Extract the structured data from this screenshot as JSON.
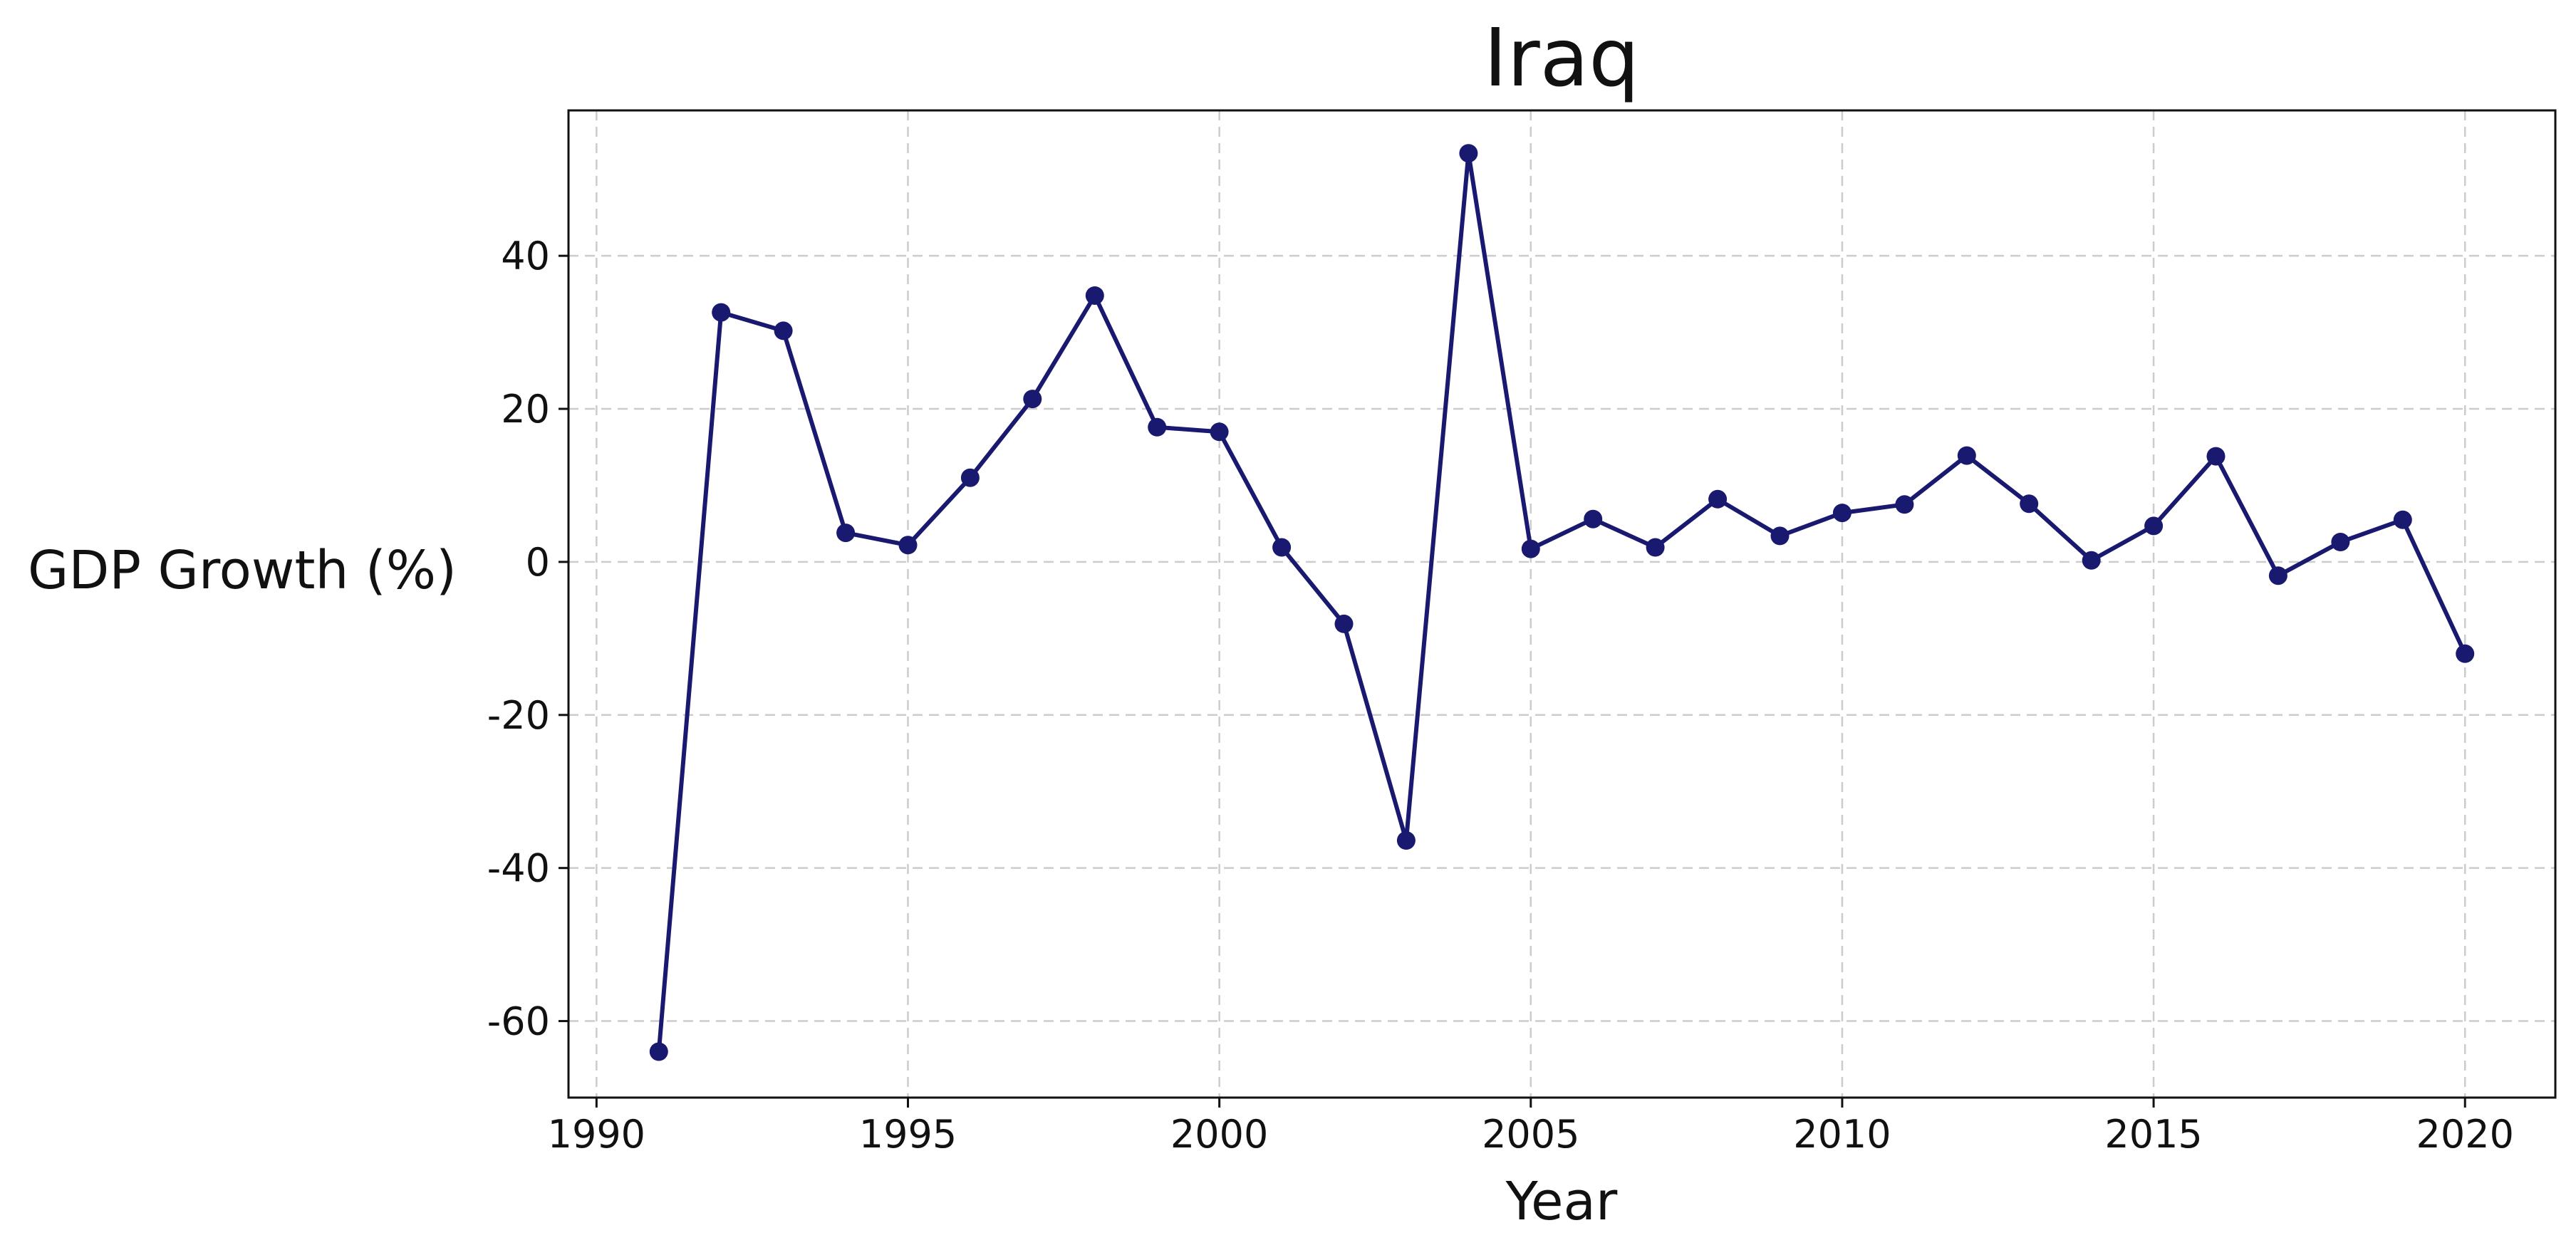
{
  "chart_data": {
    "type": "line",
    "title": "Iraq",
    "xlabel": "Year",
    "ylabel": "GDP Growth (%)",
    "xlim": [
      1989.55,
      2021.45
    ],
    "ylim": [
      -70,
      59
    ],
    "xticks": [
      1990,
      1995,
      2000,
      2005,
      2010,
      2015,
      2020
    ],
    "yticks": [
      -60,
      -40,
      -20,
      0,
      20,
      40
    ],
    "grid": true,
    "legend": "none",
    "marker": "circle",
    "color": "#191970",
    "series": [
      {
        "x": [
          1991,
          1992,
          1993,
          1994,
          1995,
          1996,
          1997,
          1998,
          1999,
          2000,
          2001,
          2002,
          2003,
          2004,
          2005,
          2006,
          2007,
          2008,
          2009,
          2010,
          2011,
          2012,
          2013,
          2014,
          2015,
          2016,
          2017,
          2018,
          2019,
          2020
        ],
        "values": [
          -64.0,
          32.6,
          30.2,
          3.8,
          2.2,
          11.0,
          21.3,
          34.8,
          17.6,
          17.0,
          1.9,
          -8.1,
          -36.4,
          53.4,
          1.7,
          5.6,
          1.9,
          8.2,
          3.4,
          6.4,
          7.5,
          13.9,
          7.6,
          0.2,
          4.7,
          13.8,
          -1.8,
          2.6,
          5.5,
          -12.0
        ]
      }
    ]
  }
}
